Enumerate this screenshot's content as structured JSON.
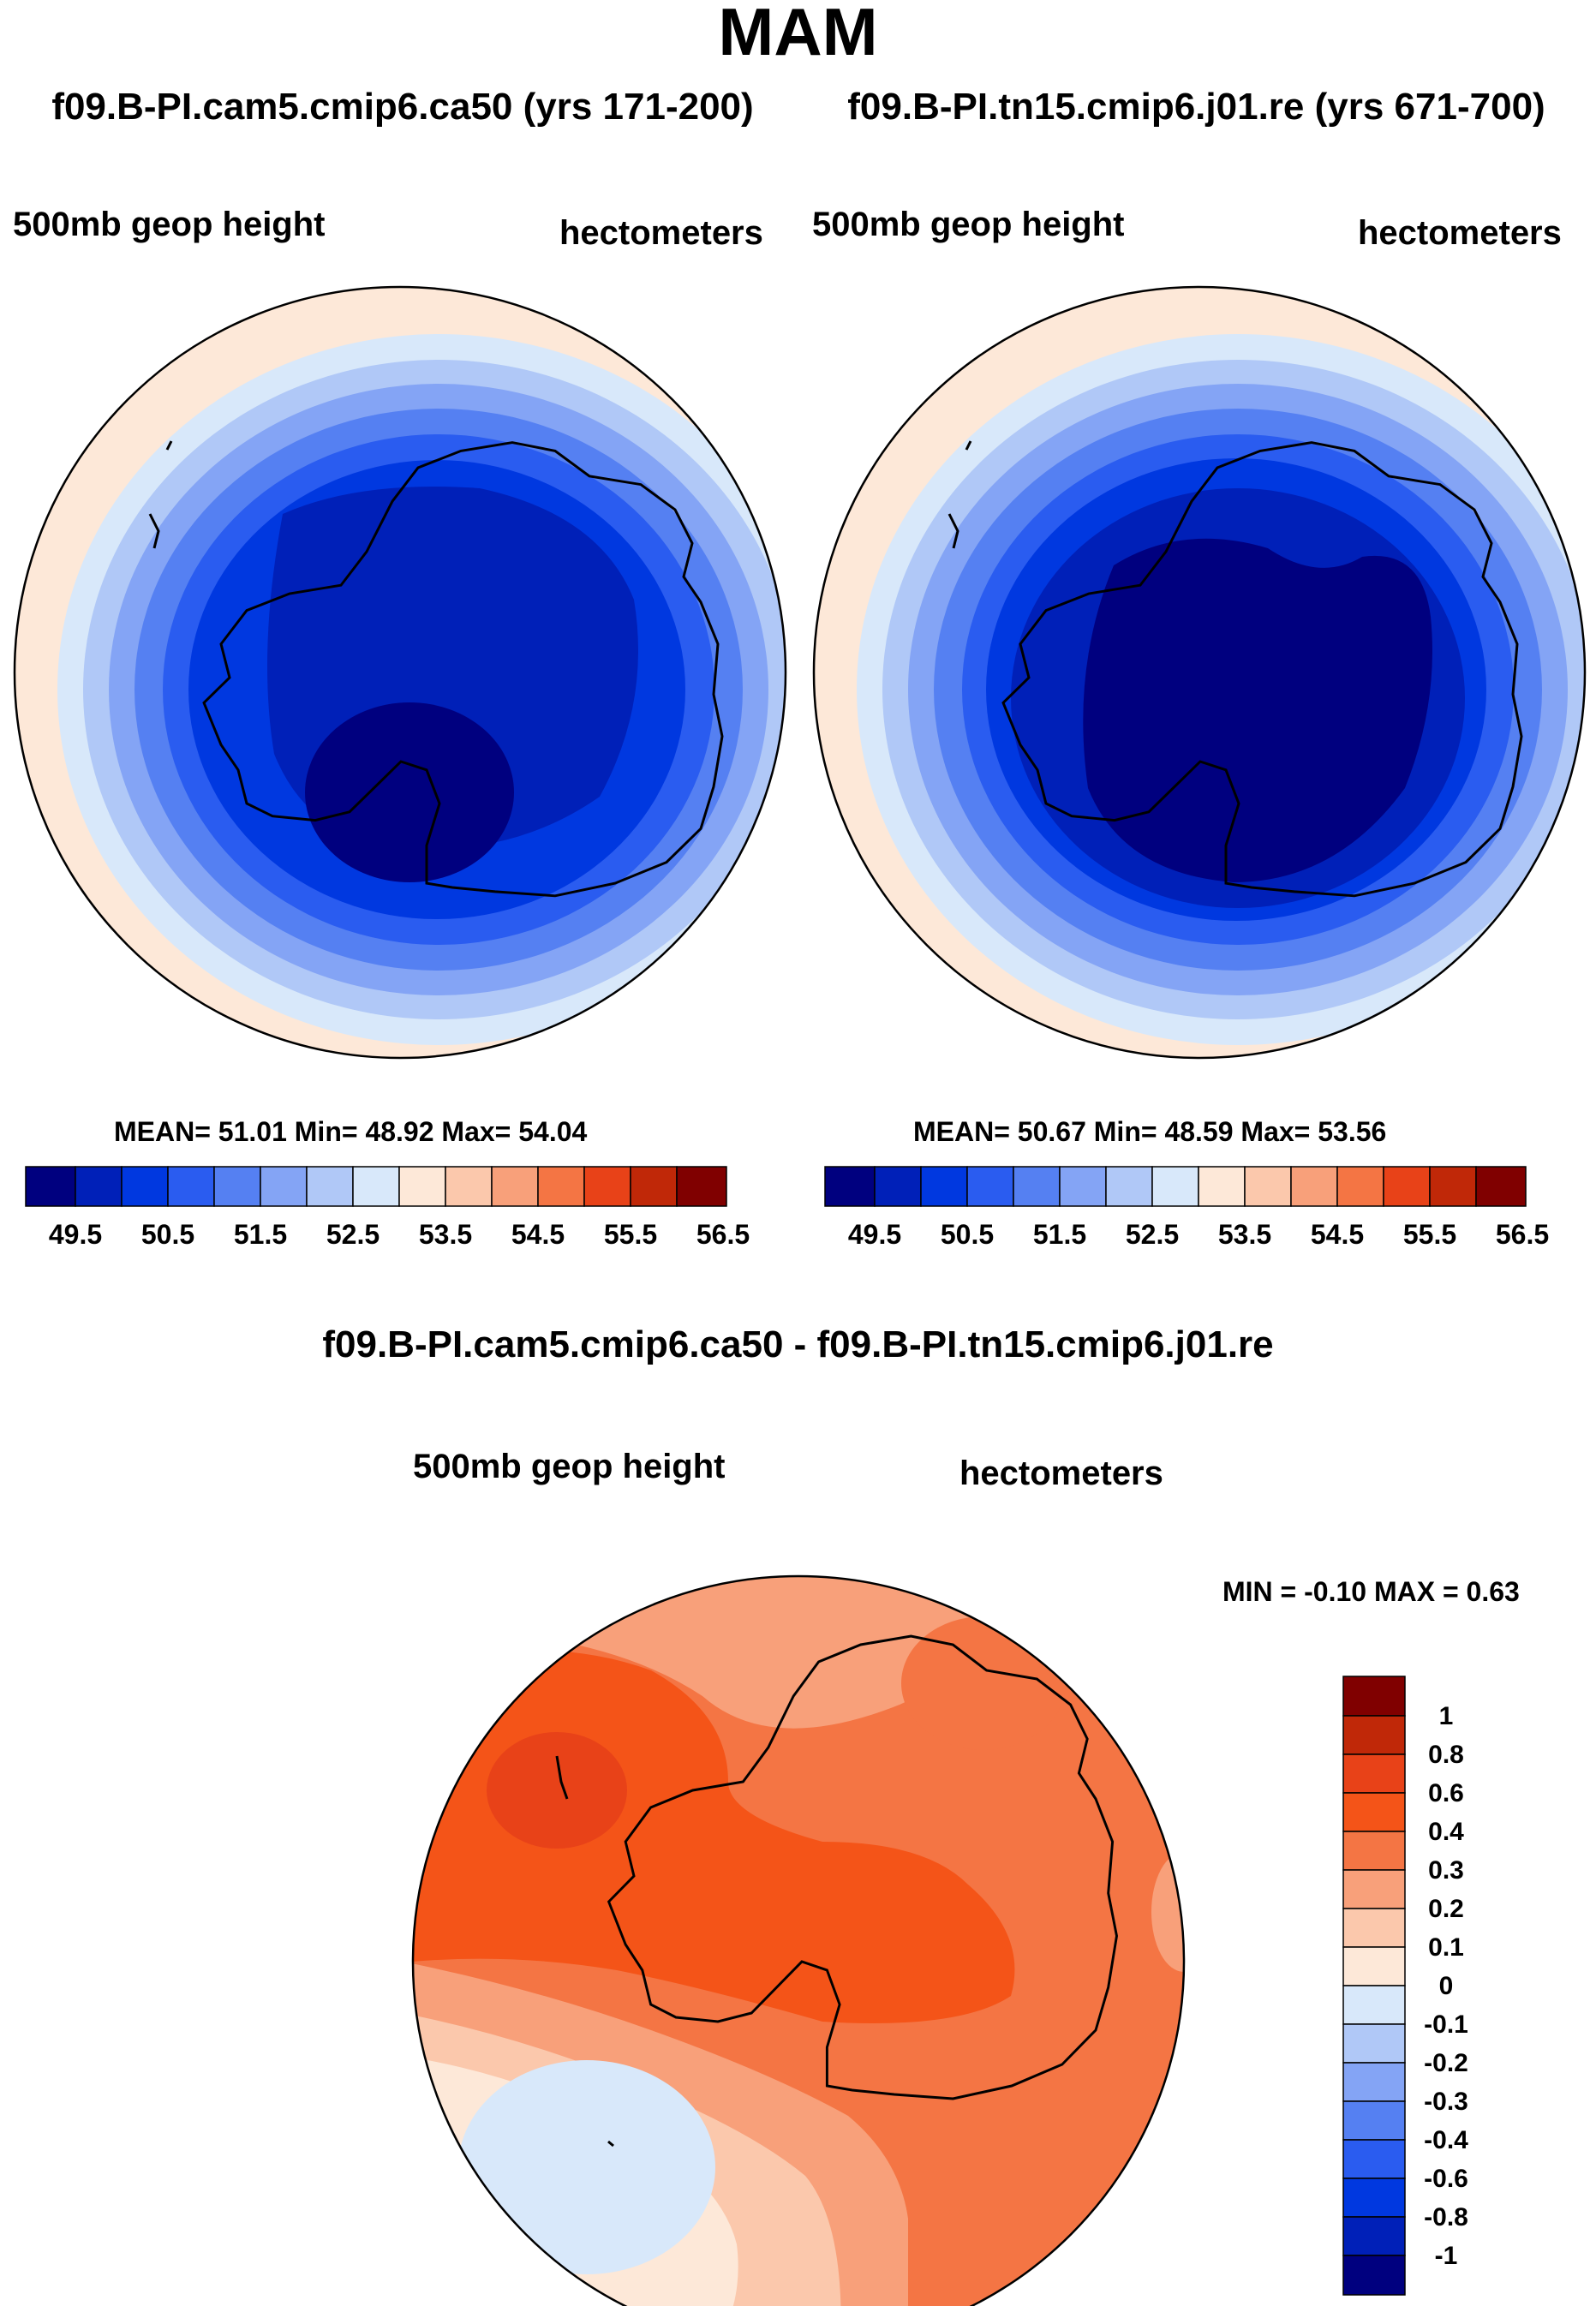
{
  "season": "MAM",
  "panels": {
    "left": {
      "title": "f09.B-PI.cam5.cmip6.ca50 (yrs 171-200)",
      "variable": "500mb geop height",
      "units": "hectometers",
      "stats": "MEAN=  51.01  Min=  48.92  Max=  54.04"
    },
    "right": {
      "title": "f09.B-PI.tn15.cmip6.j01.re (yrs 671-700)",
      "variable": "500mb geop height",
      "units": "hectometers",
      "stats": "MEAN=  50.67  Min=  48.59  Max=  53.56"
    },
    "diff": {
      "title": "f09.B-PI.cam5.cmip6.ca50 - f09.B-PI.tn15.cmip6.j01.re",
      "variable": "500mb geop height",
      "units": "hectometers",
      "stats": "MIN =  -0.10 MAX =   0.63"
    }
  },
  "chart_data": [
    {
      "type": "heatmap",
      "name": "case contour map (polar stereographic, SH)",
      "levels": [
        49.5,
        50.0,
        50.5,
        51.0,
        51.5,
        52.0,
        52.5,
        53.0,
        53.5,
        54.0,
        54.5,
        55.0,
        55.5,
        56.0,
        56.5
      ],
      "level_labels": [
        "49.5",
        "50.5",
        "51.5",
        "52.5",
        "53.5",
        "54.5",
        "55.5",
        "56.5"
      ],
      "colors": [
        "#00007f",
        "#0020b8",
        "#0038e0",
        "#2a5cf0",
        "#5580f2",
        "#84a4f5",
        "#b0c8f7",
        "#d8e8fa",
        "#fde8d8",
        "#fbc8ac",
        "#f8a07a",
        "#f47544",
        "#e84218",
        "#c02808",
        "#800000"
      ],
      "mean": 51.01,
      "min": 48.92,
      "max": 54.04
    },
    {
      "type": "heatmap",
      "name": "control contour map (polar stereographic, SH)",
      "levels": [
        49.5,
        50.0,
        50.5,
        51.0,
        51.5,
        52.0,
        52.5,
        53.0,
        53.5,
        54.0,
        54.5,
        55.0,
        55.5,
        56.0,
        56.5
      ],
      "level_labels": [
        "49.5",
        "50.5",
        "51.5",
        "52.5",
        "53.5",
        "54.5",
        "55.5",
        "56.5"
      ],
      "mean": 50.67,
      "min": 48.59,
      "max": 53.56
    },
    {
      "type": "heatmap",
      "name": "difference contour map",
      "levels": [
        -1,
        -0.8,
        -0.6,
        -0.4,
        -0.3,
        -0.2,
        -0.1,
        0,
        0.1,
        0.2,
        0.3,
        0.4,
        0.6,
        0.8,
        1
      ],
      "level_labels": [
        "1",
        "0.8",
        "0.6",
        "0.4",
        "0.3",
        "0.2",
        "0.1",
        "0",
        "-0.1",
        "-0.2",
        "-0.3",
        "-0.4",
        "-0.6",
        "-0.8",
        "-1"
      ],
      "colors_top_to_bottom": [
        "#800000",
        "#c02808",
        "#e84218",
        "#f45418",
        "#f47544",
        "#f8a07a",
        "#fbc8ac",
        "#fde8d8",
        "#d8e8fa",
        "#b0c8f7",
        "#84a4f5",
        "#5580f2",
        "#2a5cf0",
        "#0038e0",
        "#0020b8",
        "#00007f"
      ],
      "min": -0.1,
      "max": 0.63
    }
  ]
}
